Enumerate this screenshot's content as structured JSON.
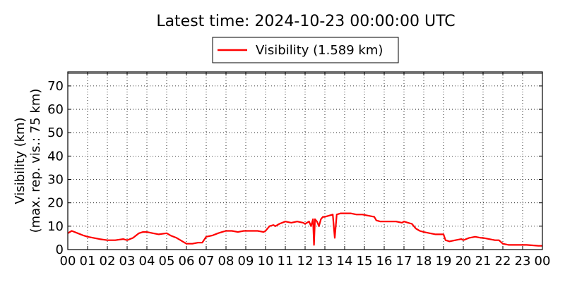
{
  "chart_data": {
    "type": "line",
    "title": "Latest time: 2024-10-23 00:00:00 UTC",
    "ylabel_line1": "Visibility (km)",
    "ylabel_line2": "(max. rep. vis.: 75 km)",
    "xlabel": "",
    "ylim": [
      0,
      76
    ],
    "xlim": [
      0,
      24
    ],
    "grid": true,
    "legend_position": "top-center",
    "x_tick_labels": [
      "00",
      "01",
      "02",
      "03",
      "04",
      "05",
      "06",
      "07",
      "08",
      "09",
      "10",
      "11",
      "12",
      "13",
      "14",
      "15",
      "16",
      "17",
      "18",
      "19",
      "20",
      "21",
      "22",
      "23",
      "00"
    ],
    "y_ticks": [
      0,
      10,
      20,
      30,
      40,
      50,
      60,
      70
    ],
    "series": [
      {
        "name": "Visibility (1.589 km)",
        "color": "#ff0000",
        "x": [
          0,
          0.2,
          0.5,
          0.8,
          1.0,
          1.3,
          1.6,
          2.0,
          2.4,
          2.8,
          3.0,
          3.3,
          3.6,
          3.8,
          4.0,
          4.3,
          4.6,
          5.0,
          5.2,
          5.5,
          5.8,
          6.0,
          6.3,
          6.6,
          6.8,
          7.0,
          7.3,
          7.6,
          7.8,
          8.0,
          8.3,
          8.6,
          8.9,
          9.2,
          9.6,
          9.9,
          10.0,
          10.2,
          10.4,
          10.5,
          10.7,
          11.0,
          11.3,
          11.6,
          11.9,
          12.0,
          12.2,
          12.3,
          12.4,
          12.45,
          12.5,
          12.6,
          12.7,
          12.8,
          12.9,
          13.0,
          13.2,
          13.4,
          13.5,
          13.6,
          13.8,
          14.0,
          14.3,
          14.6,
          14.9,
          15.2,
          15.5,
          15.6,
          15.8,
          16.0,
          16.3,
          16.6,
          16.9,
          17.0,
          17.2,
          17.4,
          17.6,
          17.8,
          18.0,
          18.3,
          18.6,
          19.0,
          19.1,
          19.3,
          19.6,
          19.9,
          20.0,
          20.3,
          20.6,
          20.9,
          21.0,
          21.3,
          21.6,
          21.8,
          22.0,
          22.3,
          22.6,
          22.9,
          23.2,
          23.5,
          23.8,
          24.0
        ],
        "values": [
          7,
          8,
          7,
          6,
          5.5,
          5,
          4.5,
          4,
          4,
          4.5,
          4,
          5,
          7,
          7.5,
          7.5,
          7,
          6.5,
          7,
          6,
          5,
          3.5,
          2.5,
          2.5,
          3,
          3,
          5.5,
          6,
          7,
          7.5,
          8,
          8,
          7.5,
          8,
          8,
          8,
          7.5,
          8,
          10,
          10.5,
          10,
          11,
          12,
          11.5,
          12,
          11.5,
          11,
          12,
          10,
          13,
          2,
          13,
          12,
          10,
          13,
          14,
          14,
          14.5,
          15,
          5,
          15,
          15.5,
          15.5,
          15.5,
          15,
          15,
          14.5,
          14,
          12.5,
          12,
          12,
          12,
          12,
          11.5,
          12,
          11.5,
          11,
          9,
          8,
          7.5,
          7,
          6.5,
          6.5,
          4,
          3.5,
          4,
          4.5,
          4,
          5,
          5.5,
          5,
          5,
          4.5,
          4,
          4,
          2.5,
          2,
          2,
          2,
          2,
          1.8,
          1.6,
          1.589
        ]
      }
    ]
  }
}
